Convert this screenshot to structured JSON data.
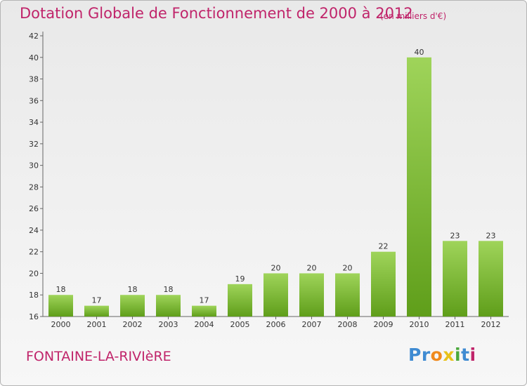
{
  "chart_data": {
    "type": "bar",
    "title": "Dotation Globale de Fonctionnement de 2000 à 2012",
    "unit": "(en milliers d'€)",
    "categories": [
      "2000",
      "2001",
      "2002",
      "2003",
      "2004",
      "2005",
      "2006",
      "2007",
      "2008",
      "2009",
      "2010",
      "2011",
      "2012"
    ],
    "values": [
      18,
      17,
      18,
      18,
      17,
      19,
      20,
      20,
      20,
      22,
      40,
      23,
      23
    ],
    "ylim": [
      16,
      42
    ],
    "yticks": [
      16,
      18,
      20,
      22,
      24,
      26,
      28,
      30,
      32,
      34,
      36,
      38,
      40,
      42
    ],
    "xlabel": "",
    "ylabel": "",
    "grid": false,
    "colors": {
      "bar_light": "#9fd45a",
      "bar_dark": "#5f9e1a"
    }
  },
  "footer": {
    "commune": "FONTAINE-LA-RIVIèRE",
    "logo_letters": [
      {
        "ch": "P",
        "color": "#3f8bd2"
      },
      {
        "ch": "r",
        "color": "#3f8bd2"
      },
      {
        "ch": "o",
        "color": "#f08a1d"
      },
      {
        "ch": "x",
        "color": "#e8c21a"
      },
      {
        "ch": "i",
        "color": "#4aa83c"
      },
      {
        "ch": "t",
        "color": "#3f8bd2"
      },
      {
        "ch": "i",
        "color": "#c0246a"
      }
    ]
  }
}
